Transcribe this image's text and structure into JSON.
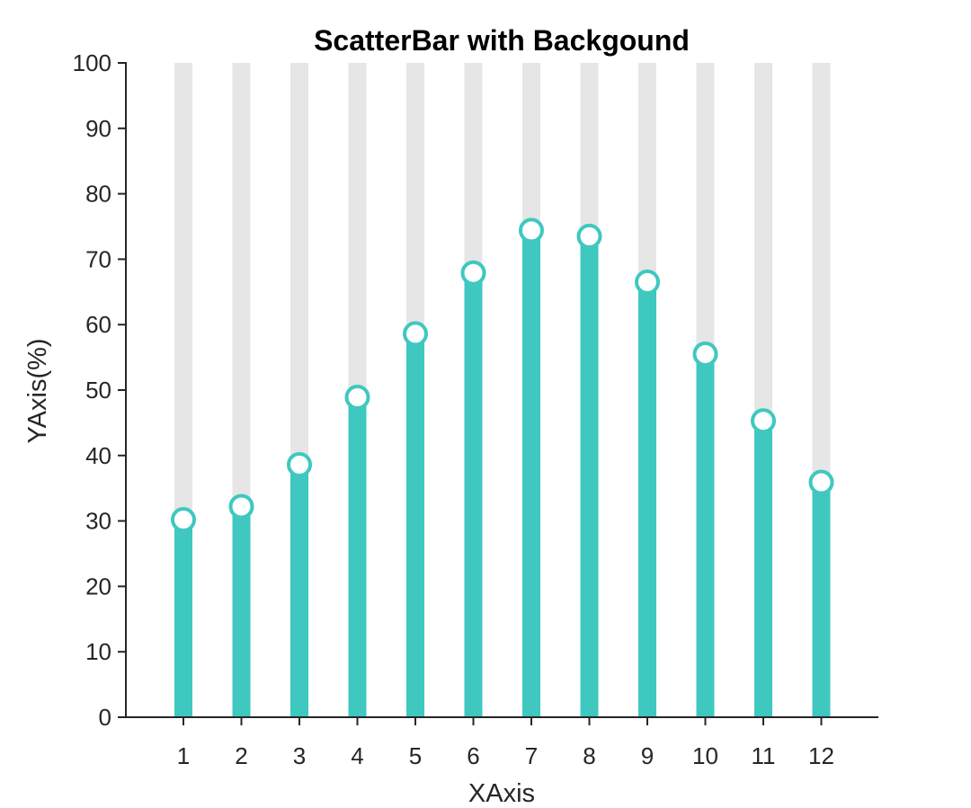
{
  "chart_data": {
    "type": "bar",
    "title": "ScatterBar with Backgound",
    "xlabel": "XAxis",
    "ylabel": "YAxis(%)",
    "categories": [
      "1",
      "2",
      "3",
      "4",
      "5",
      "6",
      "7",
      "8",
      "9",
      "10",
      "11",
      "12"
    ],
    "values": [
      30.2,
      32.2,
      38.6,
      48.9,
      58.6,
      67.9,
      74.4,
      73.5,
      66.5,
      55.5,
      45.3,
      35.9
    ],
    "background_value": 100,
    "ylim": [
      0,
      100
    ],
    "yticks": [
      0,
      10,
      20,
      30,
      40,
      50,
      60,
      70,
      80,
      90,
      100
    ],
    "grid": false,
    "legend": "none",
    "markers": "open-circle",
    "colors": {
      "bar": "#3ec8c0",
      "background_bar": "#e6e6e6",
      "marker_fill": "#ffffff",
      "axis": "#262626"
    }
  }
}
